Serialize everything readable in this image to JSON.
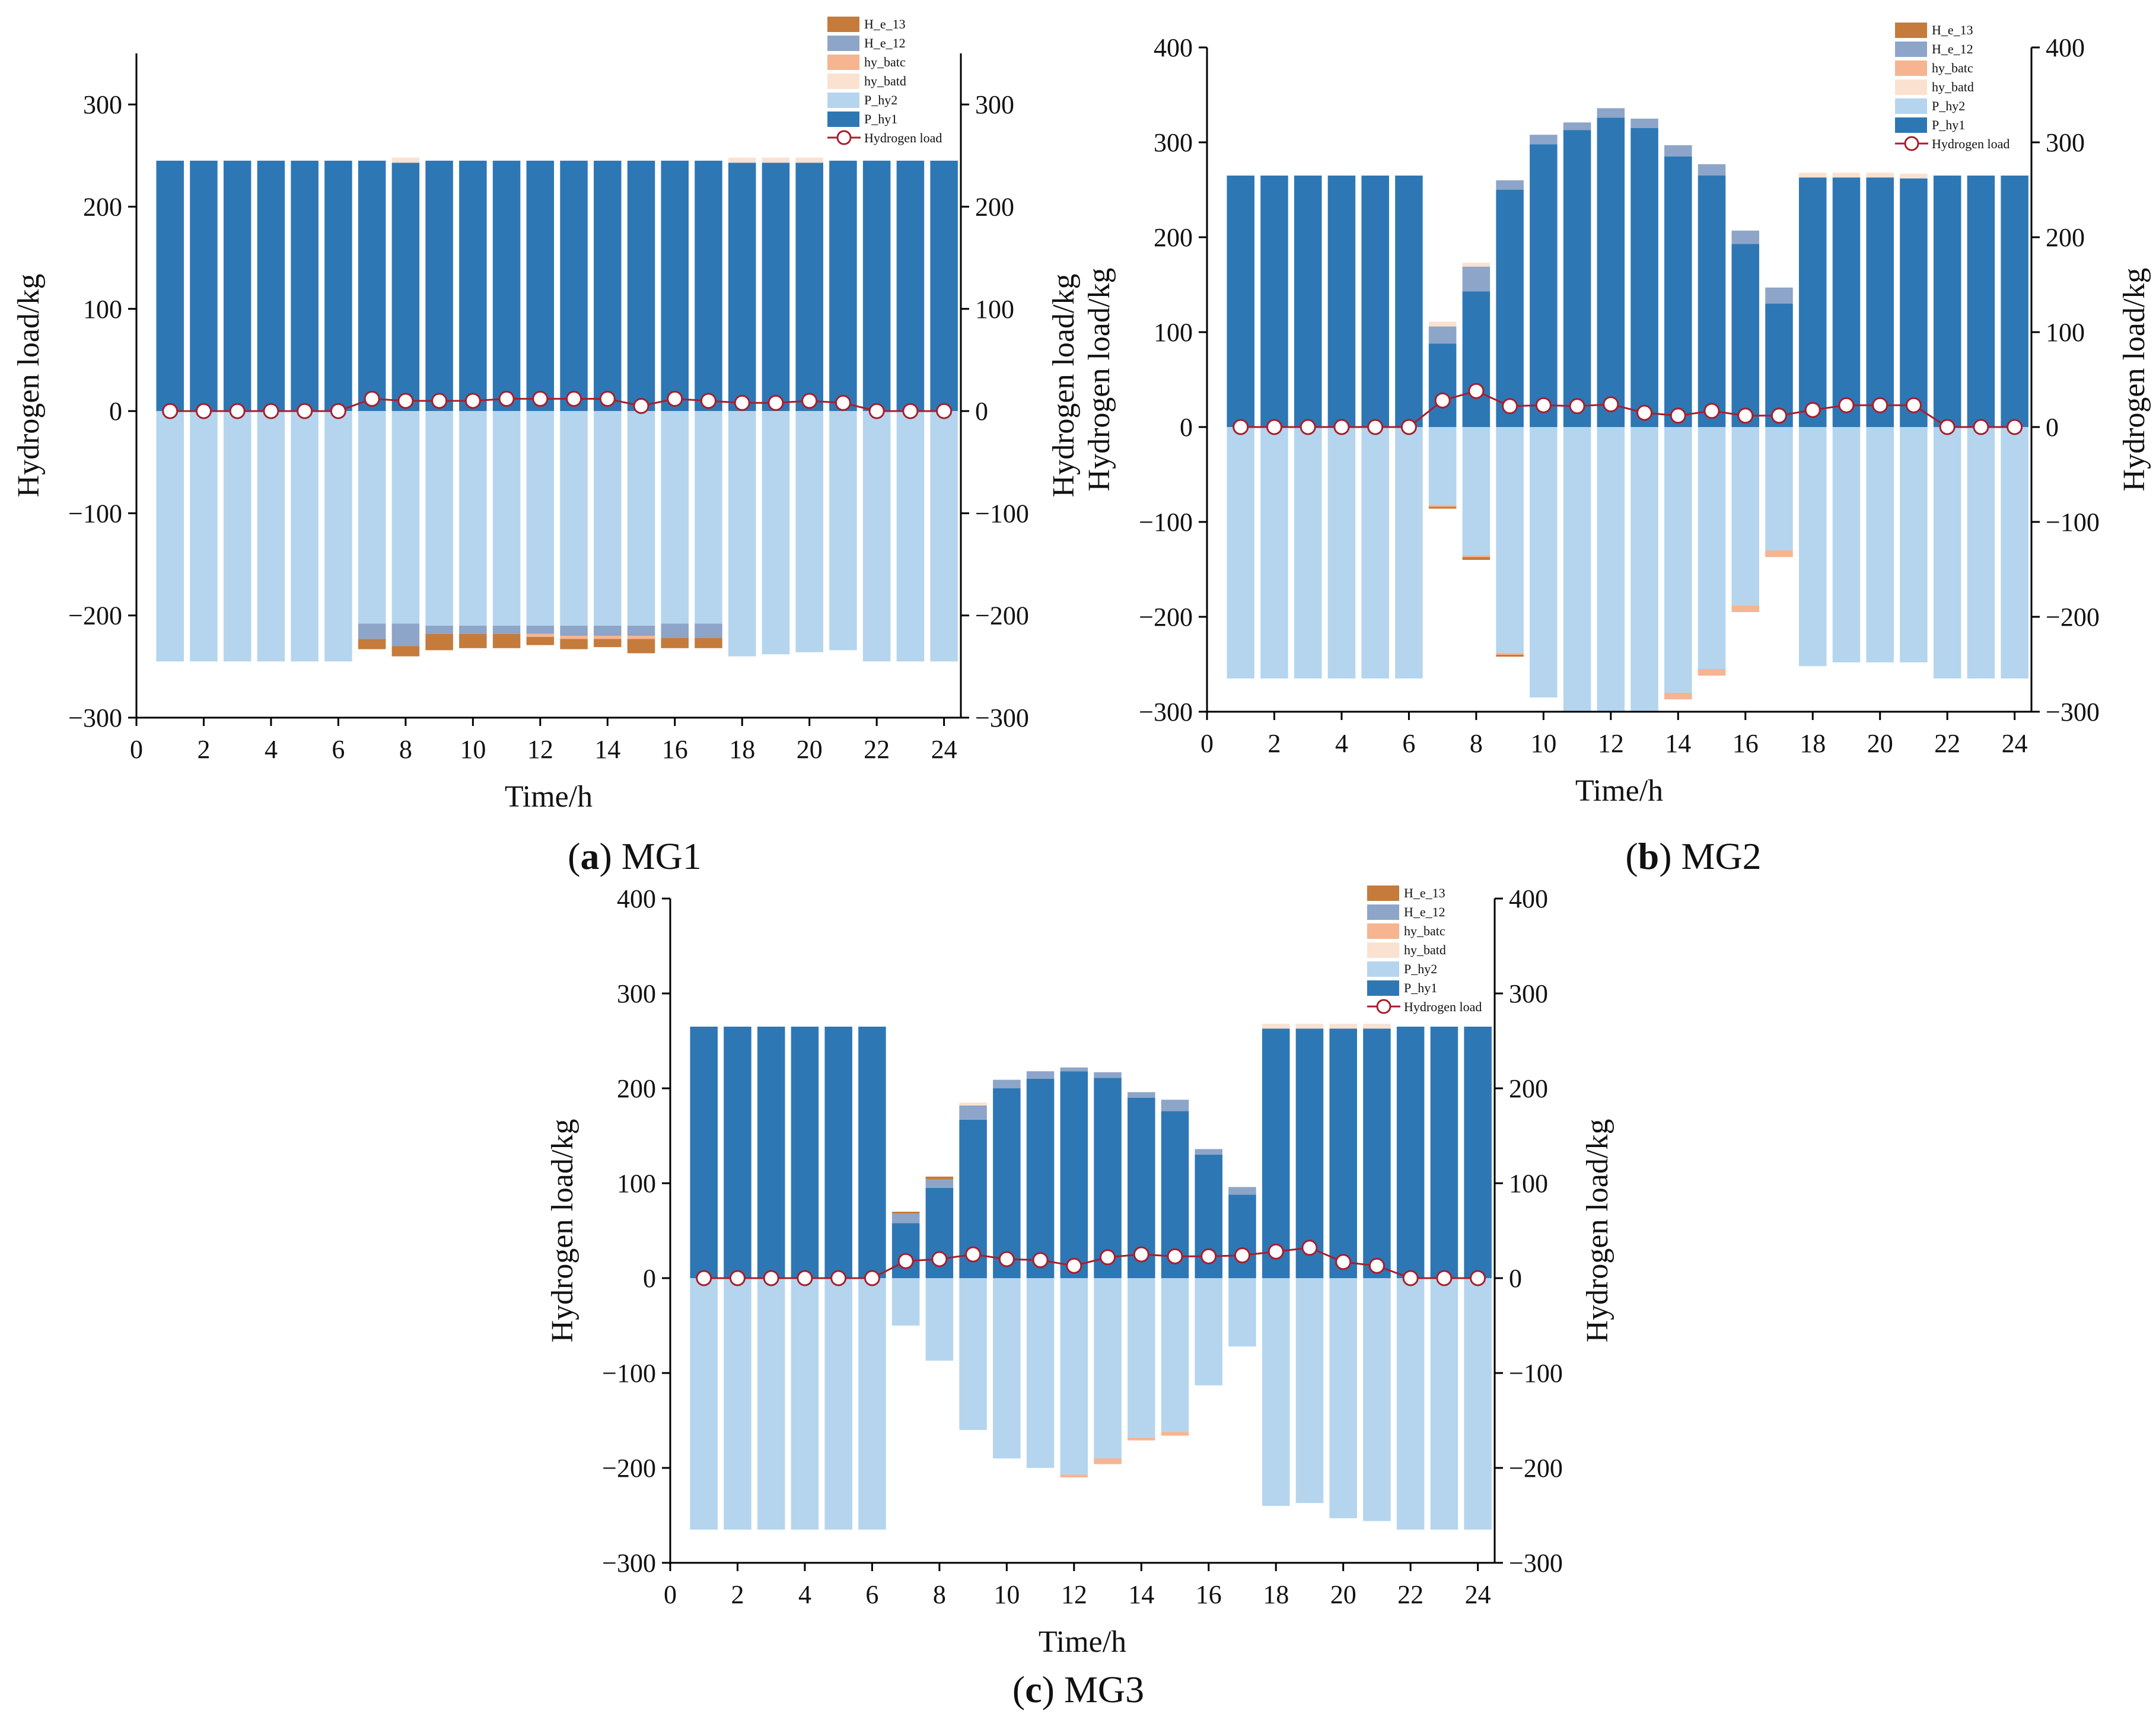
{
  "colors": {
    "P_hy1": "#2E77B5",
    "P_hy2": "#B5D5EE",
    "hy_batd": "#FBE1CF",
    "hy_batc": "#F6B490",
    "H_e_12": "#8DA5C8",
    "H_e_13": "#C57B3B",
    "load_line": "#A81E2D",
    "load_marker_fill": "#ffffff"
  },
  "charts": [
    {
      "id": "mg1",
      "caption_letter": "a",
      "caption_text": "MG1",
      "xlabel": "Time/h",
      "ylabel_left": "Hydrogen load/kg",
      "ylabel_right": "Hydrogen load/kg",
      "yticks": [
        -300,
        -200,
        -100,
        0,
        100,
        200,
        300
      ],
      "ytick_labels": [
        "−300",
        "−200",
        "−100",
        "0",
        "100",
        "200",
        "300"
      ],
      "ylim": [
        -300,
        350
      ],
      "xticks": [
        0,
        2,
        4,
        6,
        8,
        10,
        12,
        14,
        16,
        18,
        20,
        22,
        24
      ],
      "right_axis_labels": true,
      "legend": [
        "H_e_13",
        "H_e_12",
        "hy_batc",
        "hy_batd",
        "P_hy2",
        "P_hy1",
        "Hydrogen load"
      ],
      "chart_data": {
        "type": "bar",
        "x": [
          1,
          2,
          3,
          4,
          5,
          6,
          7,
          8,
          9,
          10,
          11,
          12,
          13,
          14,
          15,
          16,
          17,
          18,
          19,
          20,
          21,
          22,
          23,
          24
        ],
        "P_hy1": [
          245,
          245,
          245,
          245,
          245,
          245,
          245,
          243,
          245,
          245,
          245,
          245,
          245,
          245,
          245,
          245,
          245,
          243,
          243,
          243,
          245,
          245,
          245,
          245
        ],
        "H_e_12": [
          0,
          0,
          0,
          0,
          0,
          0,
          0,
          0,
          0,
          0,
          0,
          0,
          0,
          0,
          0,
          0,
          0,
          0,
          0,
          0,
          0,
          0,
          0,
          0
        ],
        "hy_batd": [
          0,
          0,
          0,
          0,
          0,
          0,
          0,
          5,
          0,
          0,
          0,
          0,
          0,
          0,
          0,
          0,
          0,
          5,
          5,
          5,
          0,
          0,
          0,
          0
        ],
        "P_hy2": [
          -245,
          -245,
          -245,
          -245,
          -245,
          -245,
          -208,
          -208,
          -210,
          -210,
          -210,
          -210,
          -210,
          -210,
          -210,
          -208,
          -208,
          -240,
          -238,
          -236,
          -234,
          -245,
          -245,
          -245
        ],
        "H_e_12_neg": [
          0,
          0,
          0,
          0,
          0,
          0,
          -15,
          -22,
          -8,
          -8,
          -8,
          -8,
          -10,
          -10,
          -10,
          -14,
          -14,
          0,
          0,
          0,
          0,
          0,
          0,
          0
        ],
        "hy_batc_neg": [
          0,
          0,
          0,
          0,
          0,
          0,
          0,
          0,
          0,
          0,
          0,
          -3,
          -3,
          -3,
          -3,
          0,
          0,
          0,
          0,
          0,
          0,
          0,
          0,
          0
        ],
        "H_e_13_neg": [
          0,
          0,
          0,
          0,
          0,
          0,
          -10,
          -10,
          -16,
          -14,
          -14,
          -8,
          -10,
          -8,
          -14,
          -10,
          -10,
          0,
          0,
          0,
          0,
          0,
          0,
          0
        ],
        "hydrogen_load": [
          0,
          0,
          0,
          0,
          0,
          0,
          12,
          10,
          10,
          10,
          12,
          12,
          12,
          12,
          5,
          12,
          10,
          8,
          8,
          10,
          8,
          0,
          0,
          0
        ]
      }
    },
    {
      "id": "mg2",
      "caption_letter": "b",
      "caption_text": "MG2",
      "xlabel": "Time/h",
      "ylabel_left": "Hydrogen load/kg",
      "ylabel_right": "Hydrogen load/kg",
      "yticks": [
        -300,
        -200,
        -100,
        0,
        100,
        200,
        300,
        400
      ],
      "ytick_labels": [
        "−300",
        "−200",
        "−100",
        "0",
        "100",
        "200",
        "300",
        "400"
      ],
      "ylim": [
        -300,
        400
      ],
      "xticks": [
        0,
        2,
        4,
        6,
        8,
        10,
        12,
        14,
        16,
        18,
        20,
        22,
        24
      ],
      "right_axis_labels": true,
      "legend": [
        "H_e_13",
        "H_e_12",
        "hy_batc",
        "hy_batd",
        "P_hy2",
        "P_hy1",
        "Hydrogen load"
      ],
      "chart_data": {
        "type": "bar",
        "x": [
          1,
          2,
          3,
          4,
          5,
          6,
          7,
          8,
          9,
          10,
          11,
          12,
          13,
          14,
          15,
          16,
          17,
          18,
          19,
          20,
          21,
          22,
          23,
          24
        ],
        "P_hy1": [
          265,
          265,
          265,
          265,
          265,
          265,
          88,
          143,
          250,
          298,
          313,
          326,
          315,
          285,
          265,
          193,
          130,
          263,
          263,
          263,
          262,
          265,
          265,
          265
        ],
        "H_e_12": [
          0,
          0,
          0,
          0,
          0,
          0,
          18,
          26,
          10,
          10,
          8,
          10,
          10,
          12,
          12,
          14,
          17,
          0,
          0,
          0,
          0,
          0,
          0,
          0
        ],
        "hy_batd": [
          0,
          0,
          0,
          0,
          0,
          0,
          5,
          4,
          0,
          0,
          0,
          0,
          0,
          0,
          0,
          0,
          0,
          5,
          5,
          5,
          5,
          0,
          0,
          0
        ],
        "P_hy2": [
          -265,
          -265,
          -265,
          -265,
          -265,
          -265,
          -82,
          -135,
          -238,
          -285,
          -300,
          -300,
          -300,
          -280,
          -255,
          -188,
          -130,
          -252,
          -248,
          -248,
          -248,
          -265,
          -265,
          -265
        ],
        "H_e_12_neg": [
          0,
          0,
          0,
          0,
          0,
          0,
          0,
          0,
          0,
          0,
          0,
          0,
          0,
          0,
          0,
          0,
          0,
          0,
          0,
          0,
          0,
          0,
          0,
          0
        ],
        "hy_batc_neg": [
          0,
          0,
          0,
          0,
          0,
          0,
          -2,
          -2,
          -2,
          0,
          0,
          0,
          0,
          -7,
          -7,
          -7,
          -7,
          0,
          0,
          0,
          0,
          0,
          0,
          0
        ],
        "H_e_13_neg": [
          0,
          0,
          0,
          0,
          0,
          0,
          -2,
          -3,
          -2,
          0,
          0,
          0,
          0,
          0,
          0,
          0,
          0,
          0,
          0,
          0,
          0,
          0,
          0,
          0
        ],
        "hydrogen_load": [
          0,
          0,
          0,
          0,
          0,
          0,
          28,
          38,
          22,
          23,
          22,
          24,
          15,
          12,
          17,
          12,
          12,
          18,
          23,
          23,
          23,
          0,
          0,
          0
        ]
      }
    },
    {
      "id": "mg3",
      "caption_letter": "c",
      "caption_text": "MG3",
      "xlabel": "Time/h",
      "ylabel_left": "Hydrogen load/kg",
      "ylabel_right": "Hydrogen load/kg",
      "yticks": [
        -300,
        -200,
        -100,
        0,
        100,
        200,
        300,
        400
      ],
      "ytick_labels": [
        "−300",
        "−200",
        "−100",
        "0",
        "100",
        "200",
        "300",
        "400"
      ],
      "ylim": [
        -300,
        400
      ],
      "xticks": [
        0,
        2,
        4,
        6,
        8,
        10,
        12,
        14,
        16,
        18,
        20,
        22,
        24
      ],
      "right_axis_labels": true,
      "legend": [
        "H_e_13",
        "H_e_12",
        "hy_batc",
        "hy_batd",
        "P_hy2",
        "P_hy1",
        "Hydrogen load"
      ],
      "chart_data": {
        "type": "bar",
        "x": [
          1,
          2,
          3,
          4,
          5,
          6,
          7,
          8,
          9,
          10,
          11,
          12,
          13,
          14,
          15,
          16,
          17,
          18,
          19,
          20,
          21,
          22,
          23,
          24
        ],
        "P_hy1": [
          265,
          265,
          265,
          265,
          265,
          265,
          58,
          95,
          167,
          200,
          210,
          218,
          211,
          190,
          176,
          130,
          88,
          263,
          263,
          263,
          263,
          265,
          265,
          265
        ],
        "H_e_12": [
          0,
          0,
          0,
          0,
          0,
          0,
          10,
          9,
          15,
          9,
          8,
          4,
          6,
          6,
          12,
          6,
          8,
          0,
          0,
          0,
          0,
          0,
          0,
          0
        ],
        "hy_batd": [
          0,
          0,
          0,
          0,
          0,
          0,
          0,
          0,
          3,
          0,
          0,
          0,
          0,
          0,
          0,
          0,
          0,
          5,
          5,
          5,
          5,
          0,
          0,
          0
        ],
        "H_e_13": [
          0,
          0,
          0,
          0,
          0,
          0,
          2,
          3,
          0,
          0,
          0,
          0,
          0,
          0,
          0,
          0,
          0,
          0,
          0,
          0,
          0,
          0,
          0,
          0
        ],
        "P_hy2": [
          -265,
          -265,
          -265,
          -265,
          -265,
          -265,
          -50,
          -87,
          -160,
          -190,
          -200,
          -207,
          -190,
          -168,
          -162,
          -113,
          -72,
          -240,
          -237,
          -253,
          -256,
          -265,
          -265,
          -265
        ],
        "H_e_12_neg": [
          0,
          0,
          0,
          0,
          0,
          0,
          0,
          0,
          0,
          0,
          0,
          0,
          0,
          0,
          0,
          0,
          0,
          0,
          0,
          0,
          0,
          0,
          0,
          0
        ],
        "hy_batc_neg": [
          0,
          0,
          0,
          0,
          0,
          0,
          0,
          0,
          0,
          0,
          0,
          -3,
          -6,
          -3,
          -4,
          0,
          0,
          0,
          0,
          0,
          0,
          0,
          0,
          0
        ],
        "H_e_13_neg": [
          0,
          0,
          0,
          0,
          0,
          0,
          0,
          0,
          0,
          0,
          0,
          0,
          0,
          0,
          0,
          0,
          0,
          0,
          0,
          0,
          0,
          0,
          0,
          0
        ],
        "hydrogen_load": [
          0,
          0,
          0,
          0,
          0,
          0,
          18,
          20,
          25,
          20,
          19,
          13,
          22,
          25,
          23,
          23,
          24,
          28,
          32,
          17,
          13,
          0,
          0,
          0
        ]
      }
    }
  ]
}
